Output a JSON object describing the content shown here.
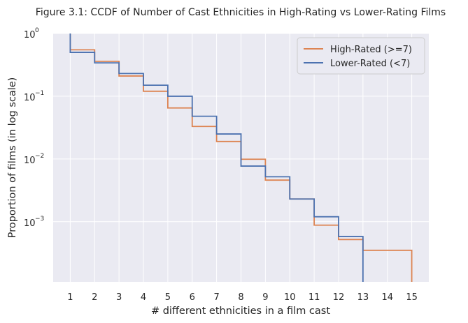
{
  "chart_data": {
    "type": "line",
    "step": "post",
    "title": "Figure 3.1: CCDF of Number of Cast Ethnicities in High-Rating vs Lower-Rating Films",
    "xlabel": "# different ethnicities in a film cast",
    "ylabel": "Proportion of films (in log scale)",
    "yscale": "log",
    "xlim": [
      0.3,
      15.7
    ],
    "ylim": [
      0.00011,
      1
    ],
    "x_ticks": [
      1,
      2,
      3,
      4,
      5,
      6,
      7,
      8,
      9,
      10,
      11,
      12,
      13,
      14,
      15
    ],
    "y_ticks": [
      {
        "value": 1,
        "base": "10",
        "exp": "0"
      },
      {
        "value": 0.1,
        "base": "10",
        "exp": "−1"
      },
      {
        "value": 0.01,
        "base": "10",
        "exp": "−2"
      },
      {
        "value": 0.001,
        "base": "10",
        "exp": "−3"
      }
    ],
    "grid": true,
    "legend_position": "top-right",
    "series": [
      {
        "name": "High-Rated (>=7)",
        "color": "#dd8452",
        "x": [
          1,
          2,
          3,
          4,
          5,
          6,
          7,
          8,
          9,
          10,
          11,
          12,
          13,
          14,
          15
        ],
        "y": [
          0.55,
          0.36,
          0.21,
          0.12,
          0.065,
          0.033,
          0.019,
          0.0099,
          0.0046,
          0.0023,
          0.00088,
          0.00052,
          0.00035,
          0.00035,
          0.00011
        ]
      },
      {
        "name": "Lower-Rated (<7)",
        "color": "#4c72b0",
        "x": [
          1,
          2,
          3,
          4,
          5,
          6,
          7,
          8,
          9,
          10,
          11,
          12,
          13
        ],
        "y": [
          0.5,
          0.34,
          0.23,
          0.15,
          0.1,
          0.048,
          0.025,
          0.0077,
          0.0052,
          0.0023,
          0.0012,
          0.00058,
          0.00011
        ]
      }
    ]
  }
}
